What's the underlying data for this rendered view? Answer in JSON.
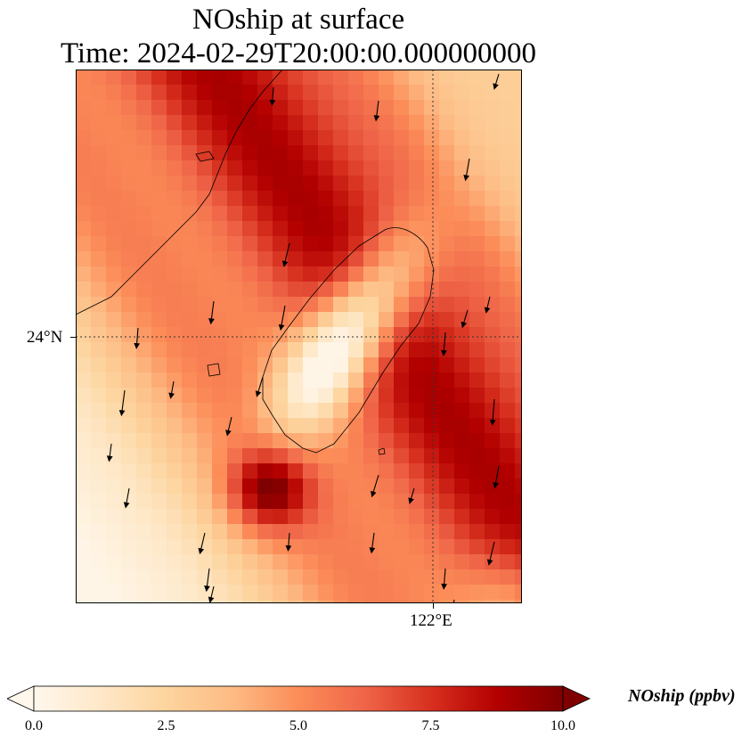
{
  "title_line1": "NOship at surface",
  "title_line2": "Time: 2024-02-29T20:00:00.000000000",
  "map": {
    "lat_tick": "24°N",
    "lon_tick": "122°E",
    "gridlines": "dotted",
    "coastline": "Taiwan and southeast China coast",
    "overlay": "wind vectors (arrows)"
  },
  "colorbar": {
    "label": "NOship (ppbv)",
    "ticks": [
      "0.0",
      "2.5",
      "5.0",
      "7.5",
      "10.0"
    ],
    "colormap": "OrRd",
    "extend": "both",
    "colors": [
      "#fff7ec",
      "#fee8c8",
      "#fdd49e",
      "#fdbb84",
      "#fc8d59",
      "#ef6548",
      "#d7301f",
      "#b30000",
      "#7f0000"
    ]
  }
}
